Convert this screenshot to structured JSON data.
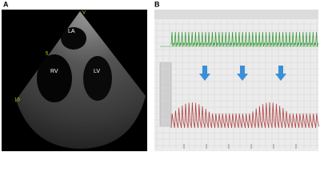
{
  "panels": [
    {
      "label": "A",
      "annotations": [
        "V",
        "LA",
        "RV",
        "LV",
        "5",
        "10"
      ]
    },
    {
      "label": "B"
    }
  ]
}
